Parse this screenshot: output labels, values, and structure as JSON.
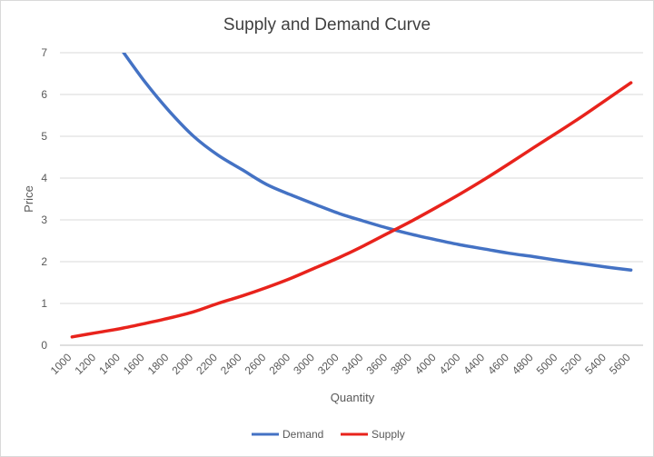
{
  "chart_data": {
    "type": "line",
    "title": "Supply and Demand Curve",
    "xlabel": "Quantity",
    "ylabel": "Price",
    "ylim": [
      0,
      7
    ],
    "yticks": [
      0,
      1,
      2,
      3,
      4,
      5,
      6,
      7
    ],
    "x": [
      1000,
      1200,
      1400,
      1600,
      1800,
      2000,
      2200,
      2400,
      2600,
      2800,
      3000,
      3200,
      3400,
      3600,
      3800,
      4000,
      4200,
      4400,
      4600,
      4800,
      5000,
      5200,
      5400,
      5600
    ],
    "series": [
      {
        "name": "Demand",
        "color": "#4472c4",
        "values": [
          null,
          null,
          7.1,
          6.3,
          5.6,
          5.0,
          4.55,
          4.2,
          3.85,
          3.6,
          3.37,
          3.15,
          2.97,
          2.8,
          2.65,
          2.52,
          2.4,
          2.3,
          2.2,
          2.12,
          2.03,
          1.95,
          1.87,
          1.8
        ]
      },
      {
        "name": "Supply",
        "color": "#e8231c",
        "values": [
          0.2,
          0.3,
          0.4,
          0.52,
          0.65,
          0.8,
          1.0,
          1.18,
          1.38,
          1.6,
          1.85,
          2.1,
          2.38,
          2.68,
          2.98,
          3.3,
          3.63,
          3.98,
          4.35,
          4.73,
          5.1,
          5.48,
          5.88,
          6.28
        ]
      }
    ],
    "grid": true,
    "legend": "bottom"
  }
}
